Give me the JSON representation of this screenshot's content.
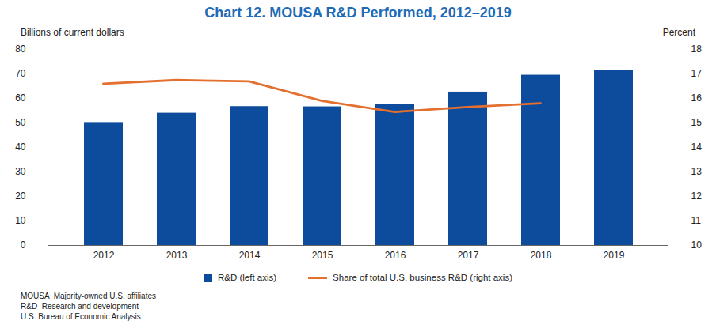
{
  "chart_data": {
    "type": "bar",
    "title": "Chart 12. MOUSA R&D Performed, 2012–2019",
    "y_label": "Billions of current dollars",
    "y2_label": "Percent",
    "categories": [
      "2012",
      "2013",
      "2014",
      "2015",
      "2016",
      "2017",
      "2018",
      "2019"
    ],
    "series": [
      {
        "name": "R&D (left axis)",
        "type": "bar",
        "color": "#0d4c9c",
        "values": [
          50.2,
          54.0,
          56.7,
          56.6,
          57.7,
          62.6,
          69.5,
          71.3
        ]
      },
      {
        "name": "Share of total U.S. business R&D (right axis)",
        "type": "line",
        "axis": "y2",
        "color": "#e4702f",
        "values": [
          16.6,
          16.75,
          16.7,
          15.9,
          15.45,
          15.65,
          15.8,
          null
        ]
      }
    ],
    "ylim": [
      0,
      80
    ],
    "yticks": [
      0,
      10,
      20,
      30,
      40,
      50,
      60,
      70,
      80
    ],
    "y2lim": [
      10,
      18
    ],
    "y2ticks": [
      10,
      11,
      12,
      13,
      14,
      15,
      16,
      17,
      18
    ],
    "grid": false,
    "notes": [
      "MOUSA  Majority-owned U.S. affiliates",
      "R&D  Research and development",
      "U.S. Bureau of Economic Analysis"
    ]
  }
}
